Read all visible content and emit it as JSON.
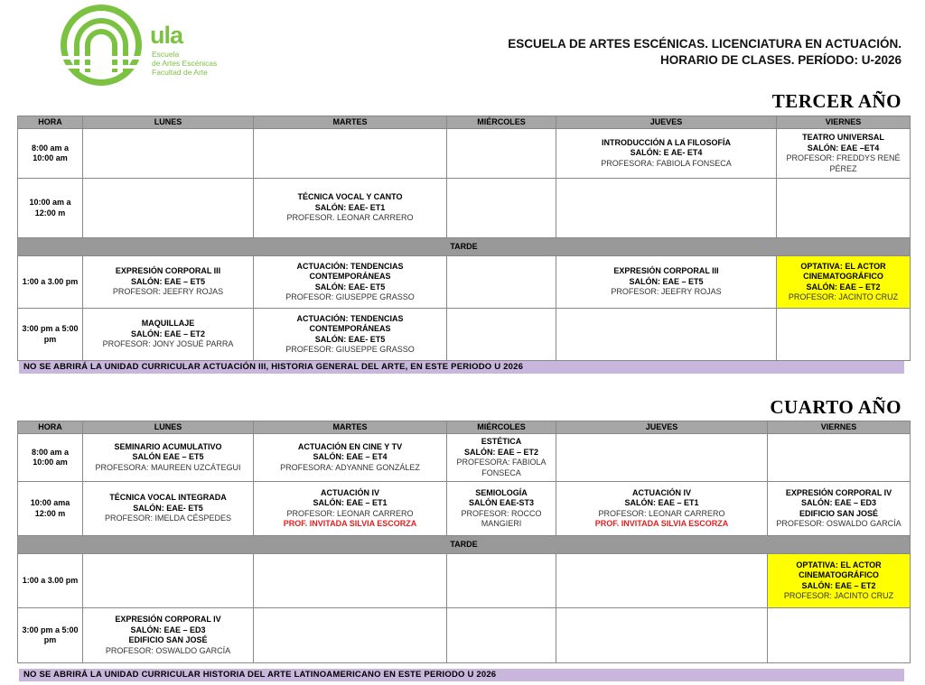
{
  "logo": {
    "name": "ula",
    "lines": [
      "Escuela",
      "de Artes Escénicas",
      "Facultad de Arte"
    ]
  },
  "header": {
    "lines": [
      "ESCUELA DE ARTES ESCÉNICAS. LICENCIATURA EN ACTUACIÓN.",
      "HORARIO DE CLASES. PERÍODO: U-2026"
    ]
  },
  "sections": [
    {
      "title": "TERCER AÑO",
      "headers": [
        "HORA",
        "LUNES",
        "MARTES",
        "MIÉRCOLES",
        "JUEVES",
        "VIERNES"
      ],
      "morning_rows": [
        {
          "hora": "8:00 am a 10:00 am",
          "cells": [
            null,
            null,
            null,
            {
              "title": "INTRODUCCIÓN A LA FILOSOFÍA",
              "room": "SALÓN: E AE- ET4",
              "professor": "PROFESORA: FABIOLA FONSECA"
            },
            {
              "title": "TEATRO UNIVERSAL",
              "room": "SALÓN: EAE –ET4",
              "professor": "PROFESOR: FREDDYS RENÉ PÉREZ"
            }
          ]
        },
        {
          "hora": "10:00 am a 12:00 m",
          "cells": [
            null,
            {
              "title": "TÉCNICA VOCAL Y CANTO",
              "room": "SALÓN: EAE- ET1",
              "professor": "PROFESOR. LEONAR CARRERO"
            },
            null,
            null,
            null
          ]
        }
      ],
      "divider": "TARDE",
      "afternoon_rows": [
        {
          "hora": "1:00 a 3.00 pm",
          "cells": [
            {
              "title": "EXPRESIÓN CORPORAL III",
              "room": "SALÓN: EAE – ET5",
              "professor": "PROFESOR: JEEFRY ROJAS"
            },
            {
              "title": "ACTUACIÓN: TENDENCIAS CONTEMPORÁNEAS",
              "room": "SALÓN: EAE- ET5",
              "professor": "PROFESOR: GIUSEPPE GRASSO"
            },
            null,
            {
              "title": "EXPRESIÓN CORPORAL III",
              "room": "SALÓN: EAE – ET5",
              "professor": "PROFESOR: JEEFRY ROJAS"
            },
            {
              "title": "OPTATIVA: EL ACTOR CINEMATOGRÁFICO",
              "room": "SALÓN: EAE – ET2",
              "professor": "PROFESOR: JACINTO CRUZ",
              "highlight": true
            }
          ]
        },
        {
          "hora": "3:00 pm a 5:00 pm",
          "cells": [
            {
              "title": "MAQUILLAJE",
              "room": "SALÓN: EAE – ET2",
              "professor": "PROFESOR: JONY JOSUÉ PARRA"
            },
            {
              "title": "ACTUACIÓN: TENDENCIAS CONTEMPORÁNEAS",
              "room": "SALÓN: EAE- ET5",
              "professor": "PROFESOR: GIUSEPPE GRASSO"
            },
            null,
            null,
            null
          ]
        }
      ],
      "notice": "NO SE ABRIRÁ LA UNIDAD CURRICULAR ACTUACIÓN III, HISTORIA GENERAL DEL ARTE, EN ESTE PERIODO U 2026"
    },
    {
      "title": "CUARTO AÑO",
      "headers": [
        "HORA",
        "LUNES",
        "MARTES",
        "MIÉRCOLES",
        "JUEVES",
        "VIERNES"
      ],
      "morning_rows": [
        {
          "hora": "8:00 am a 10:00 am",
          "cells": [
            {
              "title": "SEMINARIO ACUMULATIVO",
              "room": "SALÓN EAE – ET5",
              "professor": "PROFESORA: MAUREEN UZCÁTEGUI"
            },
            {
              "title": "ACTUACIÓN EN CINE Y TV",
              "room": "SALÓN: EAE – ET4",
              "professor": "PROFESORA: ADYANNE GONZÁLEZ"
            },
            {
              "title": "ESTÉTICA",
              "room": "SALÓN: EAE – ET2",
              "professor": "PROFESORA: FABIOLA FONSECA"
            },
            null,
            null
          ]
        },
        {
          "hora": "10:00 ama 12:00 m",
          "cells": [
            {
              "title": "TÉCNICA VOCAL INTEGRADA",
              "room": "SALÓN: EAE- ET5",
              "professor": "PROFESOR: IMELDA CÉSPEDES"
            },
            {
              "title": "ACTUACIÓN IV",
              "room": "SALÓN: EAE – ET1",
              "professor": "PROFESOR: LEONAR CARRERO",
              "guest": "PROF. INVITADA SILVIA ESCORZA"
            },
            {
              "title": "SEMIOLOGÍA",
              "room": "SALÓN EAE-ST3",
              "professor": "PROFESOR: ROCCO MANGIERI"
            },
            {
              "title": "ACTUACIÓN IV",
              "room": "SALÓN: EAE – ET1",
              "professor": "PROFESOR: LEONAR CARRERO",
              "guest": "PROF. INVITADA SILVIA ESCORZA"
            },
            {
              "title": "EXPRESIÓN CORPORAL IV",
              "room": "SALÓN: EAE – ED3",
              "extra": "EDIFICIO SAN JOSÉ",
              "professor": "PROFESOR: OSWALDO GARCÍA"
            }
          ]
        }
      ],
      "divider": "TARDE",
      "afternoon_rows": [
        {
          "hora": "1:00 a 3.00 pm",
          "cells": [
            null,
            null,
            null,
            null,
            {
              "title": "OPTATIVA: EL ACTOR CINEMATOGRÁFICO",
              "room": "SALÓN: EAE – ET2",
              "professor": "PROFESOR: JACINTO CRUZ",
              "highlight": true
            }
          ]
        },
        {
          "hora": "3:00 pm a 5:00 pm",
          "cells": [
            {
              "title": "EXPRESIÓN CORPORAL IV",
              "room": "SALÓN: EAE – ED3",
              "extra": "EDIFICIO SAN JOSÉ",
              "professor": "PROFESOR: OSWALDO GARCÍA"
            },
            null,
            null,
            null,
            null
          ]
        }
      ],
      "notice": "NO SE ABRIRÁ LA UNIDAD CURRICULAR HISTORIA DEL ARTE LATINOAMERICANO EN ESTE PERIODO U 2026"
    }
  ]
}
